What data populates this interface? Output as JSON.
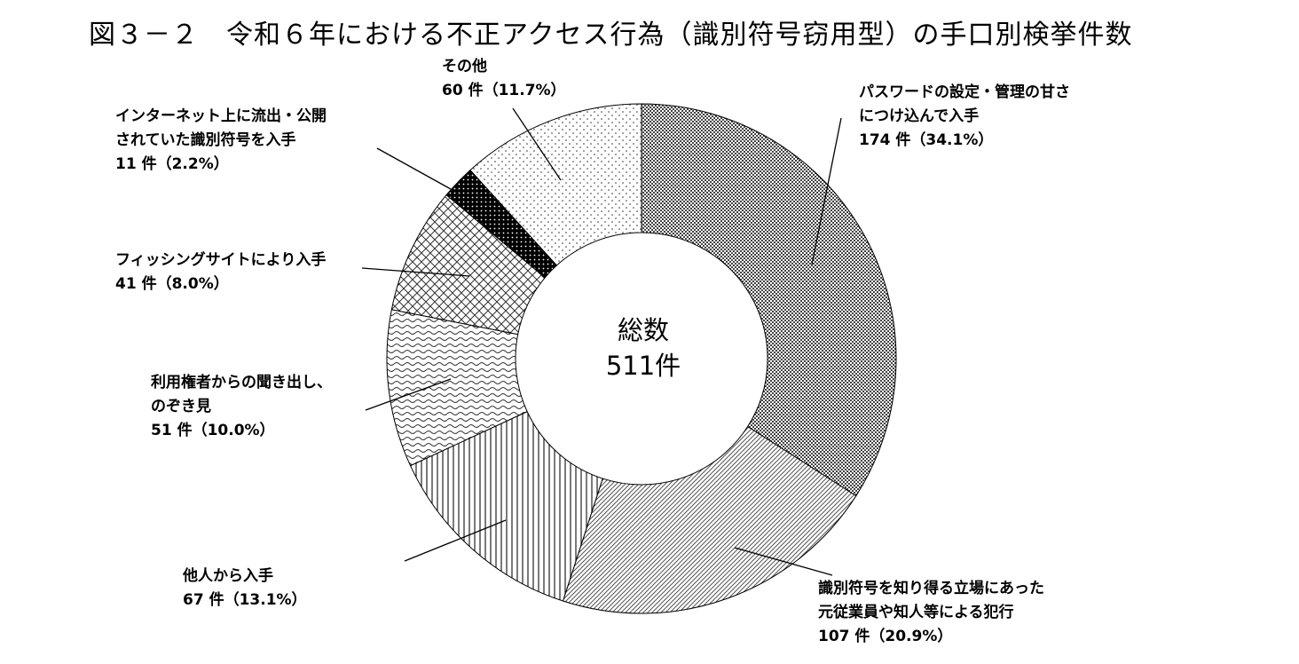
{
  "chart_data": {
    "type": "pie",
    "title": "図３－２　令和６年における不正アクセス行為（識別符号窃用型）の手口別検挙件数",
    "donut": true,
    "center_label": {
      "line1": "総数",
      "line2": "511件"
    },
    "total": 511,
    "slices": [
      {
        "lines": [
          "パスワードの設定・管理の甘さ",
          "につけ込んで入手"
        ],
        "count": 174,
        "value_text": "174 件（34.1%）",
        "percent": 34.1,
        "pattern": "dense-dots"
      },
      {
        "lines": [
          "識別符号を知り得る立場にあった",
          "元従業員や知人等による犯行"
        ],
        "count": 107,
        "value_text": "107 件（20.9%）",
        "percent": 20.9,
        "pattern": "diagonal-lines"
      },
      {
        "lines": [
          "他人から入手"
        ],
        "count": 67,
        "value_text": "67 件（13.1%）",
        "percent": 13.1,
        "pattern": "vertical-lines"
      },
      {
        "lines": [
          "利用権者からの聞き出し、",
          "のぞき見"
        ],
        "count": 51,
        "value_text": "51 件（10.0%）",
        "percent": 10.0,
        "pattern": "waves"
      },
      {
        "lines": [
          "フィッシングサイトにより入手"
        ],
        "count": 41,
        "value_text": "41 件（8.0%）",
        "percent": 8.0,
        "pattern": "crosshatch"
      },
      {
        "lines": [
          "インターネット上に流出・公開",
          "されていた識別符号を入手"
        ],
        "count": 11,
        "value_text": "11 件（2.2%）",
        "percent": 2.2,
        "pattern": "black-dots"
      },
      {
        "lines": [
          "その他"
        ],
        "count": 60,
        "value_text": "60 件（11.7%）",
        "percent": 11.7,
        "pattern": "sparse-dots"
      }
    ]
  }
}
